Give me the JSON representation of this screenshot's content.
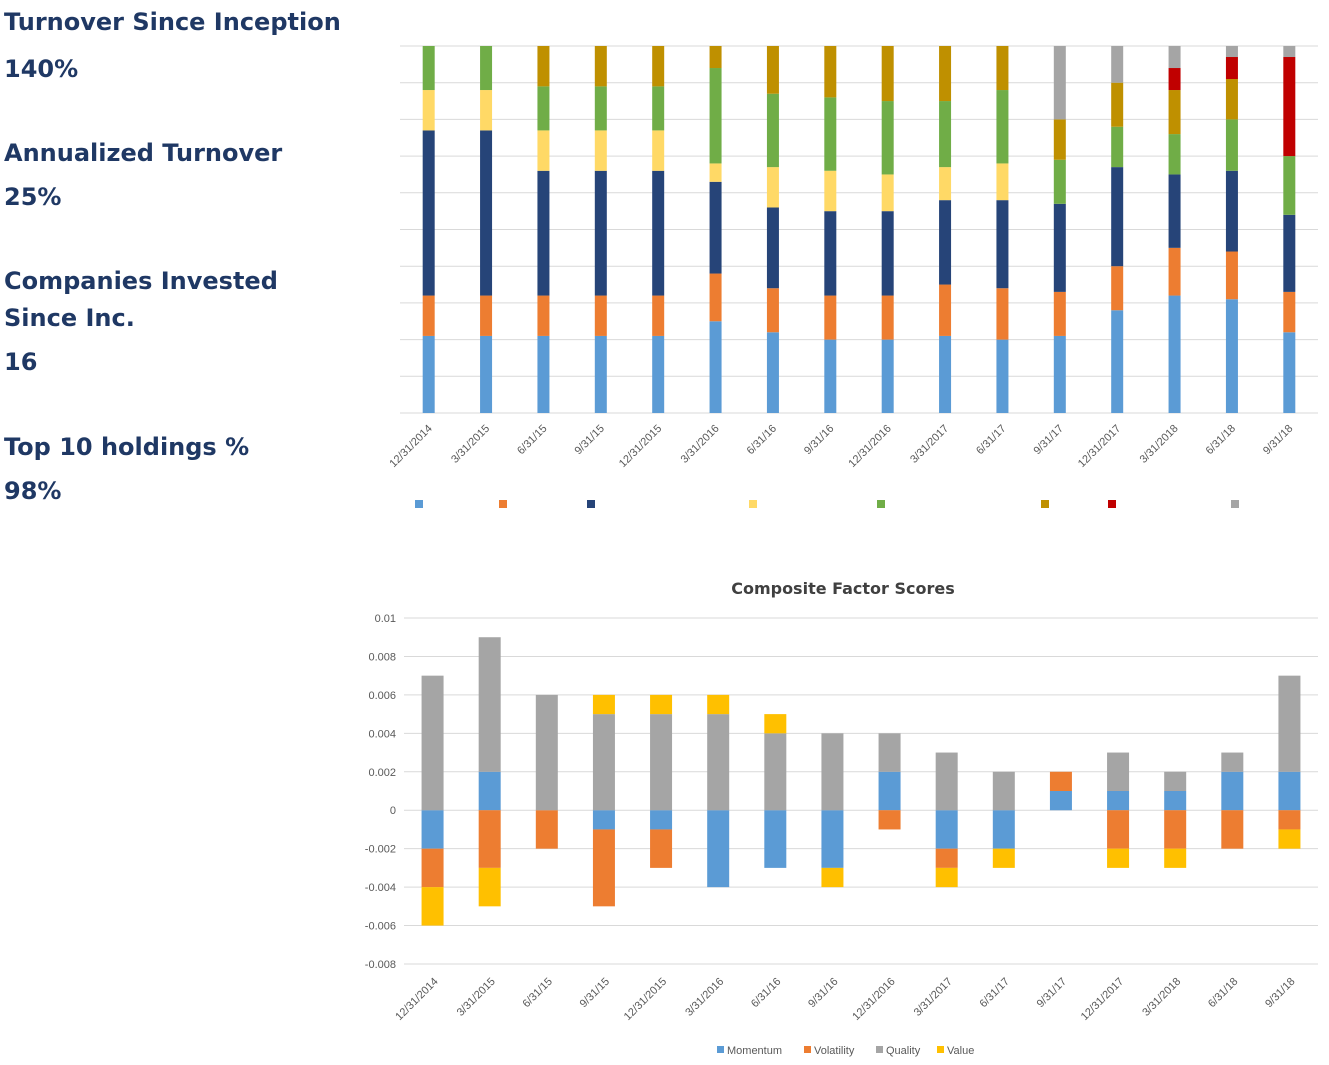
{
  "stats": [
    {
      "label": "Turnover Since Inception",
      "value": "140%"
    },
    {
      "label": "Annualized Turnover",
      "value": "25%"
    },
    {
      "label": "Companies Invested",
      "label2": "Since Inc.",
      "value": "16"
    },
    {
      "label": "Top 10 holdings %",
      "value": "98%"
    }
  ],
  "chart_data": [
    {
      "type": "bar",
      "stacked": "100%",
      "title": "",
      "categories": [
        "12/31/2014",
        "3/31/2015",
        "6/31/15",
        "9/31/15",
        "12/31/2015",
        "3/31/2016",
        "6/31/16",
        "9/31/16",
        "12/31/2016",
        "3/31/2017",
        "6/31/17",
        "9/31/17",
        "12/31/2017",
        "3/31/2018",
        "6/31/18",
        "9/31/18"
      ],
      "series": [
        {
          "color": "#5b9bd5",
          "values": [
            21,
            21,
            21,
            21,
            21,
            25,
            22,
            20,
            20,
            21,
            20,
            21,
            28,
            32,
            31,
            22
          ]
        },
        {
          "color": "#ed7d31",
          "values": [
            11,
            11,
            11,
            11,
            11,
            13,
            12,
            12,
            12,
            14,
            14,
            12,
            12,
            13,
            13,
            11
          ]
        },
        {
          "color": "#264478",
          "values": [
            45,
            45,
            34,
            34,
            34,
            25,
            22,
            23,
            23,
            23,
            24,
            24,
            27,
            20,
            22,
            21
          ]
        },
        {
          "color": "#ffd966",
          "values": [
            11,
            11,
            11,
            11,
            11,
            5,
            11,
            11,
            10,
            9,
            10,
            0,
            0,
            0,
            0,
            0
          ]
        },
        {
          "color": "#70ad47",
          "values": [
            12,
            12,
            12,
            12,
            12,
            26,
            20,
            20,
            20,
            18,
            20,
            12,
            11,
            11,
            14,
            16
          ]
        },
        {
          "color": "#bf9000",
          "values": [
            0,
            0,
            11,
            11,
            11,
            6,
            13,
            14,
            15,
            15,
            12,
            11,
            12,
            12,
            11,
            0
          ]
        },
        {
          "color": "#c00000",
          "values": [
            0,
            0,
            0,
            0,
            0,
            0,
            0,
            0,
            0,
            0,
            0,
            0,
            0,
            6,
            6,
            27
          ]
        },
        {
          "color": "#a5a5a5",
          "values": [
            0,
            0,
            0,
            0,
            0,
            0,
            0,
            0,
            0,
            0,
            0,
            20,
            10,
            6,
            3,
            3
          ]
        }
      ],
      "grid": true,
      "legend": "bottom"
    },
    {
      "type": "bar",
      "stacked": true,
      "title": "Composite Factor Scores",
      "categories": [
        "12/31/2014",
        "3/31/2015",
        "6/31/15",
        "9/31/15",
        "12/31/2015",
        "3/31/2016",
        "6/31/16",
        "9/31/16",
        "12/31/2016",
        "3/31/2017",
        "6/31/17",
        "9/31/17",
        "12/31/2017",
        "3/31/2018",
        "6/31/18",
        "9/31/18"
      ],
      "series": [
        {
          "name": "Momentum",
          "color": "#5b9bd5",
          "values": [
            -0.002,
            0.002,
            0,
            -0.001,
            -0.001,
            -0.004,
            -0.003,
            -0.003,
            0.002,
            -0.002,
            -0.002,
            0.001,
            0.001,
            0.001,
            0.002,
            0.002
          ]
        },
        {
          "name": "Volatility",
          "color": "#ed7d31",
          "values": [
            -0.002,
            -0.003,
            -0.002,
            -0.004,
            -0.002,
            0,
            0,
            0,
            -0.001,
            -0.001,
            0,
            0.001,
            -0.002,
            -0.002,
            -0.002,
            -0.001
          ]
        },
        {
          "name": "Quality",
          "color": "#a5a5a5",
          "values": [
            0.007,
            0.007,
            0.006,
            0.005,
            0.005,
            0.005,
            0.004,
            0.004,
            0.002,
            0.003,
            0.002,
            0,
            0.002,
            0.001,
            0.001,
            0.005
          ]
        },
        {
          "name": "Value",
          "color": "#ffc000",
          "values": [
            -0.002,
            -0.002,
            0,
            0.001,
            0.001,
            0.001,
            0.001,
            -0.001,
            0,
            -0.001,
            -0.001,
            0,
            -0.001,
            -0.001,
            0,
            -0.001
          ]
        }
      ],
      "ylim": [
        -0.008,
        0.01
      ],
      "yticks": [
        0.01,
        0.008,
        0.006,
        0.004,
        0.002,
        0,
        -0.002,
        -0.004,
        -0.006,
        -0.008
      ],
      "yticklabels": [
        "0.01",
        "0.008",
        "0.006",
        "0.004",
        "0.002",
        "0",
        "-0.002",
        "-0.004",
        "-0.006",
        "-0.008"
      ],
      "grid": true,
      "legend": "bottom"
    }
  ]
}
